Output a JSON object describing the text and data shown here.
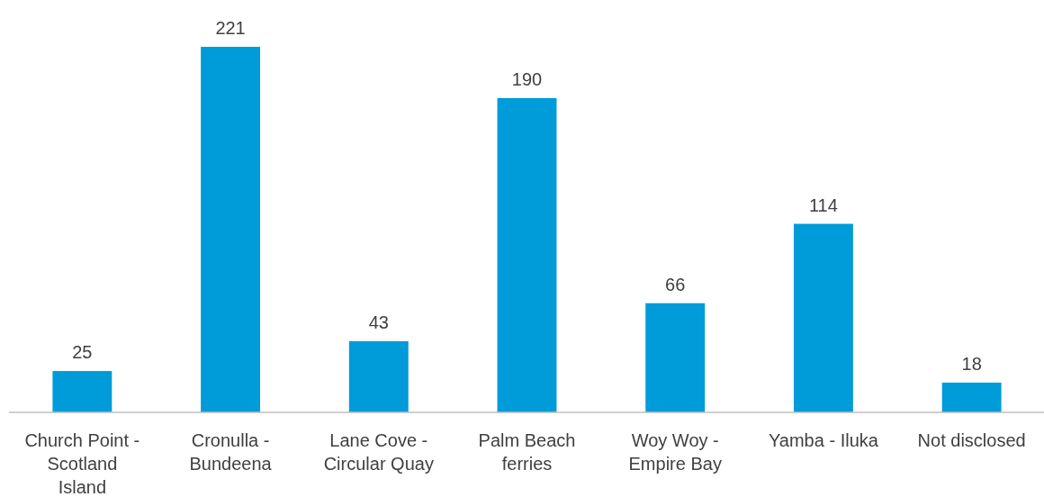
{
  "chart_data": {
    "type": "bar",
    "categories": [
      "Church Point - Scotland Island",
      "Cronulla - Bundeena",
      "Lane Cove - Circular Quay",
      "Palm Beach ferries",
      "Woy Woy - Empire Bay",
      "Yamba - Iluka",
      "Not disclosed"
    ],
    "values": [
      25,
      221,
      43,
      190,
      66,
      114,
      18
    ],
    "color": "#009bd9",
    "data_labels": true
  }
}
